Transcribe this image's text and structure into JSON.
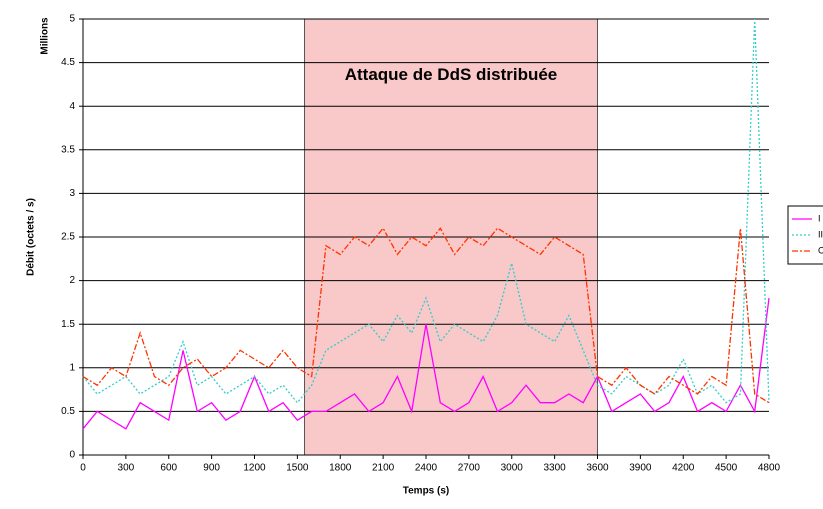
{
  "chart_data": {
    "type": "line",
    "y_label": "Débit (octets / s)",
    "y_unit_label": "Millions",
    "x_label": "Temps (s)",
    "annotation": "Attaque de DdS distribuée",
    "shaded_region": [
      1550,
      3600
    ],
    "x": [
      0,
      100,
      200,
      300,
      400,
      500,
      600,
      700,
      800,
      900,
      1000,
      1100,
      1200,
      1300,
      1400,
      1500,
      1600,
      1700,
      1800,
      1900,
      2000,
      2100,
      2200,
      2300,
      2400,
      2500,
      2600,
      2700,
      2800,
      2900,
      3000,
      3100,
      3200,
      3300,
      3400,
      3500,
      3600,
      3700,
      3800,
      3900,
      4000,
      4100,
      4200,
      4300,
      4400,
      4500,
      4600,
      4700,
      4800
    ],
    "series": [
      {
        "name": "I",
        "color": "#ff00ff",
        "style": "solid",
        "values": [
          0.3,
          0.5,
          0.4,
          0.3,
          0.6,
          0.5,
          0.4,
          1.2,
          0.5,
          0.6,
          0.4,
          0.5,
          0.9,
          0.5,
          0.6,
          0.4,
          0.5,
          0.5,
          0.6,
          0.7,
          0.5,
          0.6,
          0.9,
          0.5,
          1.5,
          0.6,
          0.5,
          0.6,
          0.9,
          0.5,
          0.6,
          0.8,
          0.6,
          0.6,
          0.7,
          0.6,
          0.9,
          0.5,
          0.6,
          0.7,
          0.5,
          0.6,
          0.9,
          0.5,
          0.6,
          0.5,
          0.8,
          0.5,
          1.8
        ]
      },
      {
        "name": "II",
        "color": "#33cccc",
        "style": "dotted",
        "values": [
          0.9,
          0.7,
          0.8,
          0.9,
          0.7,
          0.8,
          0.9,
          1.3,
          0.8,
          0.9,
          0.7,
          0.8,
          0.9,
          0.7,
          0.8,
          0.6,
          0.8,
          1.2,
          1.3,
          1.4,
          1.5,
          1.3,
          1.6,
          1.4,
          1.8,
          1.3,
          1.5,
          1.4,
          1.3,
          1.6,
          2.2,
          1.5,
          1.4,
          1.3,
          1.6,
          1.2,
          0.8,
          0.7,
          0.9,
          0.8,
          0.7,
          0.8,
          1.1,
          0.7,
          0.8,
          0.6,
          0.7,
          5,
          0.6
        ]
      },
      {
        "name": "C",
        "color": "#ff3300",
        "style": "dashdot",
        "values": [
          0.9,
          0.8,
          1.0,
          0.9,
          1.4,
          0.9,
          0.8,
          1.0,
          1.1,
          0.9,
          1.0,
          1.2,
          1.1,
          1.0,
          1.2,
          1.0,
          0.9,
          2.4,
          2.3,
          2.5,
          2.4,
          2.6,
          2.3,
          2.5,
          2.4,
          2.6,
          2.3,
          2.5,
          2.4,
          2.6,
          2.5,
          2.4,
          2.3,
          2.5,
          2.4,
          2.3,
          0.9,
          0.8,
          1.0,
          0.8,
          0.7,
          0.9,
          0.8,
          0.7,
          0.9,
          0.8,
          2.6,
          0.7,
          0.6
        ]
      }
    ],
    "xlim": [
      0,
      4800
    ],
    "xticks": [
      0,
      300,
      600,
      900,
      1200,
      1500,
      1800,
      2100,
      2400,
      2700,
      3000,
      3300,
      3600,
      3900,
      4200,
      4500,
      4800
    ],
    "ylim": [
      0,
      5
    ],
    "yticks": [
      0,
      0.5,
      1,
      1.5,
      2,
      2.5,
      3,
      3.5,
      4,
      4.5,
      5
    ],
    "grid": true
  }
}
